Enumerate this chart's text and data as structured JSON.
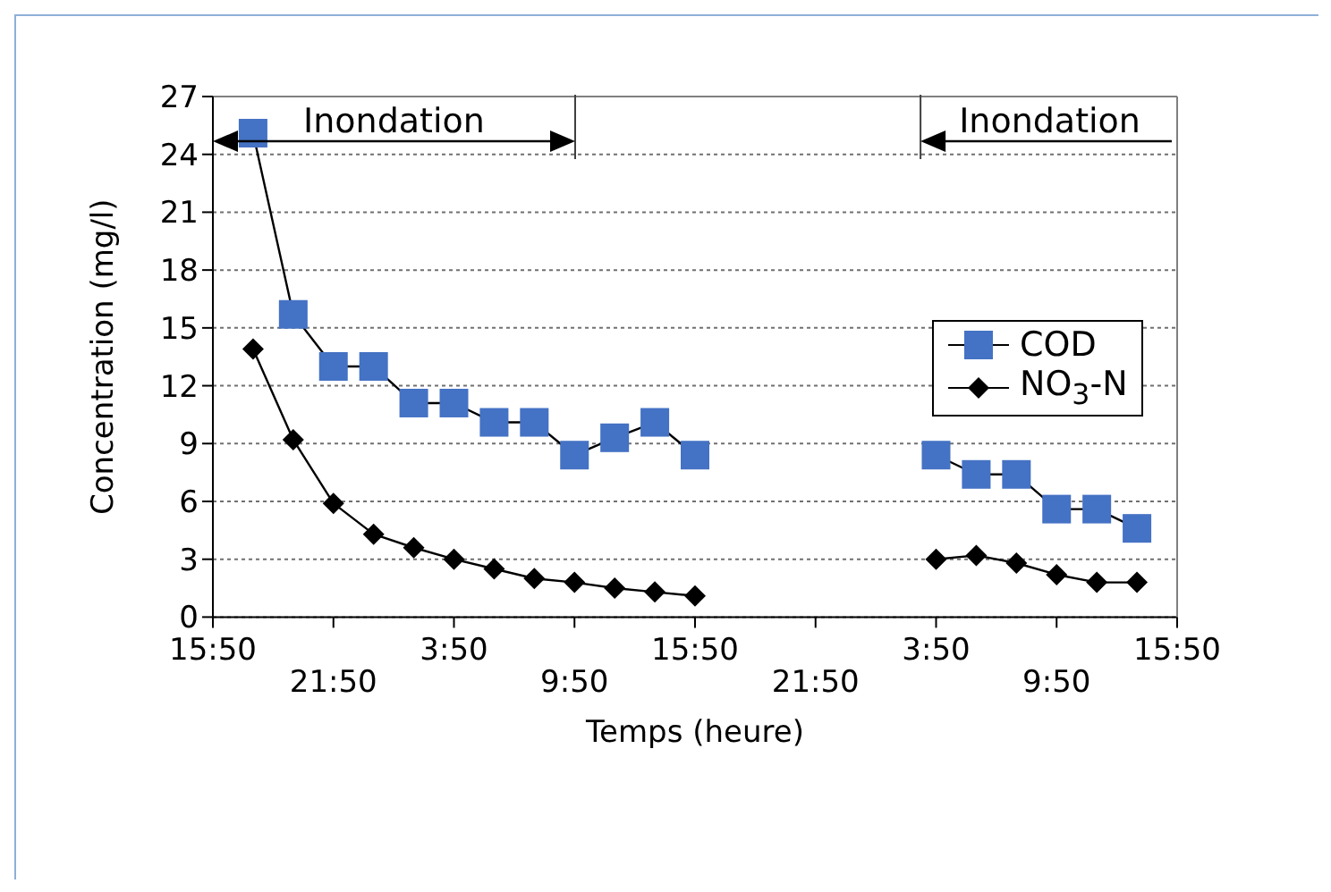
{
  "chart_data": {
    "type": "line",
    "xlabel": "Temps (heure)",
    "ylabel": "Concentration (mg/l)",
    "categories": [
      "15:50",
      null,
      null,
      "21:50",
      null,
      null,
      "3:50",
      null,
      null,
      "9:50",
      null,
      null,
      "15:50",
      null,
      null,
      "21:50",
      null,
      null,
      "3:50",
      null,
      null,
      "9:50",
      null,
      null,
      "15:50"
    ],
    "series": [
      {
        "name": "COD",
        "color": "#4472c4",
        "marker": "square",
        "values": [
          null,
          25.1,
          15.7,
          13,
          13,
          11.1,
          11.1,
          10.1,
          10.1,
          8.4,
          9.3,
          10.1,
          8.4,
          null,
          null,
          null,
          null,
          null,
          8.4,
          7.4,
          7.4,
          5.6,
          5.6,
          4.6,
          null
        ]
      },
      {
        "name": "NO$_{3}$-N",
        "color": "#000000",
        "marker": "diamond",
        "values": [
          null,
          13.9,
          9.2,
          5.9,
          4.3,
          3.6,
          3.0,
          2.5,
          2.0,
          1.8,
          1.5,
          1.3,
          1.1,
          null,
          null,
          null,
          null,
          null,
          3.0,
          3.2,
          2.8,
          2.2,
          1.8,
          1.8,
          null
        ]
      }
    ],
    "ylim": [
      0,
      27
    ],
    "yticks": [
      0,
      3,
      6,
      9,
      12,
      15,
      18,
      21,
      24,
      27
    ],
    "grid": "y",
    "legend": "right",
    "line_style": "solid",
    "annotations": [
      "Inondation",
      "Inondation"
    ]
  }
}
